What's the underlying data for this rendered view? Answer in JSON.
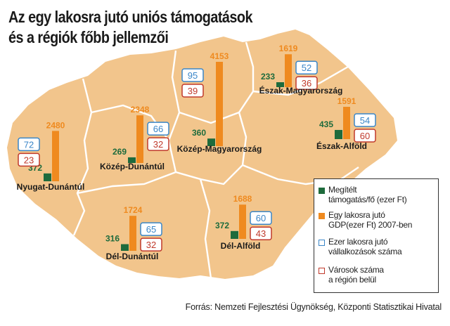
{
  "title": {
    "line1": "Az egy lakosra jutó uniós támogatások",
    "line2": "és a régiók főbb jellemzői"
  },
  "colors": {
    "country_fill": "#f2c58c",
    "border": "#ffffff",
    "support": "#1e6b3c",
    "gdp": "#ef8a1f",
    "enterprises": "#3a86c8",
    "cities": "#c0392b"
  },
  "regions": [
    {
      "name": "Nyugat-Dunántúl",
      "support": 372,
      "gdp": 2480,
      "enterprises": 72,
      "cities": 23
    },
    {
      "name": "Közép-Dunántúl",
      "support": 269,
      "gdp": 2348,
      "enterprises": 66,
      "cities": 32
    },
    {
      "name": "Közép-Magyarország",
      "support": 360,
      "gdp": 4153,
      "enterprises": 95,
      "cities": 39
    },
    {
      "name": "Észak-Magyarország",
      "support": 233,
      "gdp": 1619,
      "enterprises": 52,
      "cities": 36
    },
    {
      "name": "Észak-Alföld",
      "support": 435,
      "gdp": 1591,
      "enterprises": 54,
      "cities": 60
    },
    {
      "name": "Dél-Dunántúl",
      "support": 316,
      "gdp": 1724,
      "enterprises": 65,
      "cities": 32
    },
    {
      "name": "Dél-Alföld",
      "support": 372,
      "gdp": 1688,
      "enterprises": 60,
      "cities": 43
    }
  ],
  "legend": {
    "support": [
      "Megítélt",
      "támogatás/fő (ezer Ft)"
    ],
    "gdp": [
      "Egy lakosra jutó",
      "GDP(ezer Ft) 2007-ben"
    ],
    "enterprises": [
      "Ezer lakosra jutó",
      "vállalkozások száma"
    ],
    "cities": [
      "Városok száma",
      "a régión belül"
    ]
  },
  "source": "Forrás: Nemzeti Fejlesztési Ügynökség, Központi Statisztikai Hivatal"
}
